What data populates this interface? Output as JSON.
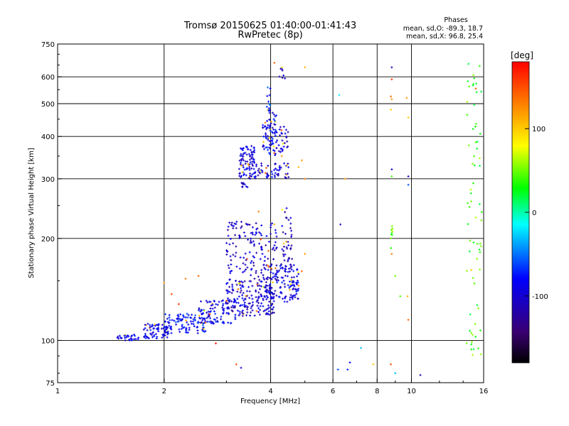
{
  "header": {
    "title_line1": "Tromsø 20150625 01:40:00-01:41:43",
    "title_line2": "RwPretec (8p)"
  },
  "phases": {
    "heading": "Phases",
    "line_o": "mean, sd,O: -89.3, 18.7",
    "line_x": "mean, sd,X:  96.8, 25.4"
  },
  "chart_data": {
    "type": "scatter",
    "title": "Tromsø 20150625 01:40:00-01:41:43",
    "subtitle": "RwPretec (8p)",
    "xlabel": "Frequency [MHz]",
    "ylabel": "Stationary phase Virtual Height [km]",
    "x_scale": "log",
    "y_scale": "log",
    "xlim": [
      1,
      16
    ],
    "ylim": [
      75,
      750
    ],
    "x_ticks": [
      1,
      2,
      4,
      6,
      8,
      10,
      16
    ],
    "x_tick_labels": [
      "1",
      "2",
      "4",
      "6",
      "8",
      "10",
      "16"
    ],
    "y_ticks": [
      75,
      100,
      200,
      300,
      400,
      500,
      600,
      750
    ],
    "y_tick_labels": [
      "75",
      "100",
      "200",
      "300",
      "400",
      "500",
      "600",
      "750"
    ],
    "grid_x": [
      2,
      4,
      6,
      8,
      10
    ],
    "grid_y": [
      100,
      200,
      300,
      400,
      500,
      600
    ],
    "colorbar": {
      "label": "[deg]",
      "range": [
        -180,
        180
      ],
      "ticks": [
        100,
        0,
        -100
      ],
      "tick_labels": [
        "100",
        "0",
        "-100"
      ],
      "colormap": "rainbow",
      "colors": [
        "#000000",
        "#3a0070",
        "#0000ff",
        "#00ffff",
        "#00ff00",
        "#ffff00",
        "#ff8000",
        "#ff0000"
      ]
    },
    "clusters": [
      {
        "x_range": [
          1.45,
          1.7
        ],
        "y_range": [
          100,
          104
        ],
        "phase": -95,
        "count": 30
      },
      {
        "x_range": [
          1.75,
          2.1
        ],
        "y_range": [
          101,
          112
        ],
        "phase": -90,
        "count": 70
      },
      {
        "x_range": [
          2.0,
          2.7
        ],
        "y_range": [
          105,
          120
        ],
        "phase": -80,
        "count": 110
      },
      {
        "x_range": [
          2.5,
          3.2
        ],
        "y_range": [
          112,
          132
        ],
        "phase": -90,
        "count": 100
      },
      {
        "x_range": [
          3.0,
          4.1
        ],
        "y_range": [
          118,
          150
        ],
        "phase": -100,
        "count": 180
      },
      {
        "x_range": [
          3.8,
          4.8
        ],
        "y_range": [
          130,
          168
        ],
        "phase": -95,
        "count": 140
      },
      {
        "x_range": [
          3.0,
          4.2
        ],
        "y_range": [
          150,
          225
        ],
        "phase": -105,
        "count": 150
      },
      {
        "x_range": [
          4.3,
          4.6
        ],
        "y_range": [
          160,
          250
        ],
        "phase": -110,
        "count": 40
      },
      {
        "x_range": [
          3.25,
          3.6
        ],
        "y_range": [
          300,
          375
        ],
        "phase": -95,
        "count": 90
      },
      {
        "x_range": [
          3.3,
          3.45
        ],
        "y_range": [
          283,
          292
        ],
        "phase": -100,
        "count": 10
      },
      {
        "x_range": [
          3.6,
          4.5
        ],
        "y_range": [
          300,
          335
        ],
        "phase": -95,
        "count": 60
      },
      {
        "x_range": [
          3.8,
          4.15
        ],
        "y_range": [
          350,
          470
        ],
        "phase": -90,
        "count": 80
      },
      {
        "x_range": [
          4.15,
          4.5
        ],
        "y_range": [
          360,
          430
        ],
        "phase": -100,
        "count": 30
      },
      {
        "x_range": [
          3.9,
          4.0
        ],
        "y_range": [
          470,
          560
        ],
        "phase": -70,
        "count": 14
      },
      {
        "x_range": [
          4.2,
          4.4
        ],
        "y_range": [
          580,
          640
        ],
        "phase": -100,
        "count": 8
      },
      {
        "x_range": [
          8.75,
          8.85
        ],
        "y_range": [
          185,
          220
        ],
        "phase": 50,
        "count": 10
      },
      {
        "x_range": [
          14.3,
          15.8
        ],
        "y_range": [
          90,
          660
        ],
        "phase": 40,
        "count": 70
      }
    ],
    "points": [
      [
        2.0,
        148,
        120
      ],
      [
        2.1,
        137,
        150
      ],
      [
        2.2,
        128,
        160
      ],
      [
        2.3,
        152,
        130
      ],
      [
        2.5,
        155,
        140
      ],
      [
        3.7,
        240,
        130
      ],
      [
        4.1,
        220,
        110
      ],
      [
        4.9,
        160,
        140
      ],
      [
        5.0,
        180,
        120
      ],
      [
        4.8,
        145,
        130
      ],
      [
        4.9,
        340,
        120
      ],
      [
        4.8,
        325,
        110
      ],
      [
        5.0,
        300,
        130
      ],
      [
        5.0,
        640,
        110
      ],
      [
        4.3,
        350,
        120
      ],
      [
        4.1,
        660,
        140
      ],
      [
        2.8,
        98,
        170
      ],
      [
        3.2,
        85,
        150
      ],
      [
        3.3,
        83,
        -100
      ],
      [
        6.25,
        530,
        -20
      ],
      [
        6.3,
        220,
        -110
      ],
      [
        6.5,
        300,
        120
      ],
      [
        6.7,
        86,
        -80
      ],
      [
        6.6,
        82,
        -70
      ],
      [
        7.2,
        95,
        -30
      ],
      [
        7.8,
        85,
        100
      ],
      [
        6.2,
        82,
        -60
      ],
      [
        8.8,
        640,
        -110
      ],
      [
        8.8,
        590,
        160
      ],
      [
        8.75,
        525,
        140
      ],
      [
        8.8,
        515,
        120
      ],
      [
        8.75,
        480,
        100
      ],
      [
        8.8,
        320,
        -100
      ],
      [
        8.8,
        305,
        40
      ],
      [
        8.8,
        180,
        130
      ],
      [
        9.0,
        155,
        50
      ],
      [
        9.3,
        135,
        40
      ],
      [
        9.7,
        520,
        120
      ],
      [
        9.8,
        455,
        100
      ],
      [
        9.8,
        305,
        -100
      ],
      [
        9.8,
        288,
        -60
      ],
      [
        9.75,
        135,
        110
      ],
      [
        9.8,
        115,
        140
      ],
      [
        8.75,
        85,
        150
      ],
      [
        9.0,
        80,
        -30
      ],
      [
        10.6,
        79,
        -120
      ]
    ]
  }
}
